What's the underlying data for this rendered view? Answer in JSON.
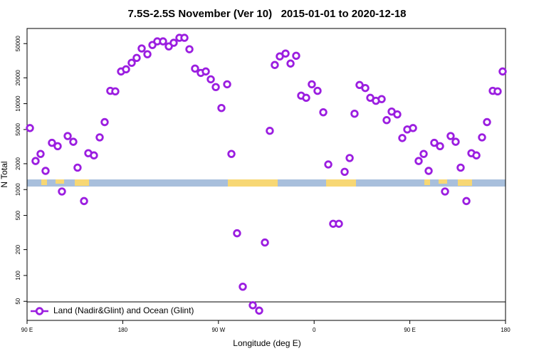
{
  "chart_data": {
    "type": "scatter",
    "title": "7.5S-2.5S November (Ver 10)   2015-01-01 to 2020-12-18",
    "x_label": "Longitude (deg E)",
    "y_label": "N Total",
    "log_y": true,
    "legend": "bottom-left",
    "xlim": [
      90,
      540
    ],
    "xticks": [
      {
        "value": 90,
        "label": "90 E"
      },
      {
        "value": 180,
        "label": "180"
      },
      {
        "value": 270,
        "label": "90 W"
      },
      {
        "value": 360,
        "label": "0"
      },
      {
        "value": 450,
        "label": "90 E"
      },
      {
        "value": 540,
        "label": "180"
      }
    ],
    "ylim": [
      30,
      75000
    ],
    "yticks": [
      50,
      100,
      200,
      500,
      1000,
      2000,
      5000,
      10000,
      20000,
      50000
    ],
    "x": [
      92.7,
      98,
      102.7,
      107.4,
      113.4,
      118.8,
      122.8,
      128.2,
      133.5,
      137.5,
      143.6,
      147.6,
      152.9,
      158.3,
      163,
      168.3,
      173,
      178.4,
      183.1,
      188.4,
      193.1,
      197.8,
      203.2,
      207.9,
      212.5,
      217.9,
      223.3,
      227.9,
      233.3,
      238,
      242.7,
      248,
      253.4,
      258.1,
      262.8,
      267.5,
      272.8,
      278.2,
      282.2,
      287.5,
      292.9,
      302.3,
      308.3,
      313.7,
      318.3,
      323,
      327.7,
      333.1,
      337.8,
      343.1,
      347.8,
      352.5,
      357.8,
      363.2,
      368.6,
      373.3,
      377.9,
      383.3,
      388.7,
      393.4,
      398,
      402.7,
      408.1,
      412.8,
      418.1,
      423.5,
      428.2,
      432.9,
      438.2,
      442.9,
      447.6,
      453,
      458.3,
      463,
      467.7,
      473,
      478.4,
      483.1,
      488.4,
      493.1,
      497.8,
      503.2,
      507.9,
      512.6,
      517.9,
      522.6,
      528,
      532.6,
      537.3
    ],
    "series": [
      {
        "name": "Land (Nadir&Glint) and Ocean (Glint)",
        "color": "#9b1ee0",
        "values": [
          5200,
          2150,
          2600,
          1650,
          3500,
          3200,
          950,
          4200,
          3600,
          1800,
          735,
          2650,
          2500,
          4050,
          6100,
          14100,
          13900,
          23700,
          25100,
          29900,
          34100,
          43900,
          37600,
          48200,
          53100,
          53100,
          46400,
          51100,
          58400,
          58400,
          43000,
          25600,
          22800,
          23700,
          19200,
          15600,
          8900,
          16800,
          2600,
          310,
          74,
          45,
          39,
          242,
          4830,
          28200,
          35500,
          38300,
          29300,
          36100,
          12400,
          11700,
          16800,
          14100,
          7940,
          1960,
          400,
          400,
          1610,
          2330,
          7640,
          16500,
          15200,
          11700,
          10800,
          11300,
          6430,
          8090,
          7500,
          3980,
          5010,
          5200,
          2150,
          2600,
          1650,
          3500,
          3200,
          950,
          4200,
          3600,
          1800,
          735,
          2650,
          2500,
          4050,
          6100,
          14100,
          13900,
          23700
        ]
      }
    ]
  }
}
